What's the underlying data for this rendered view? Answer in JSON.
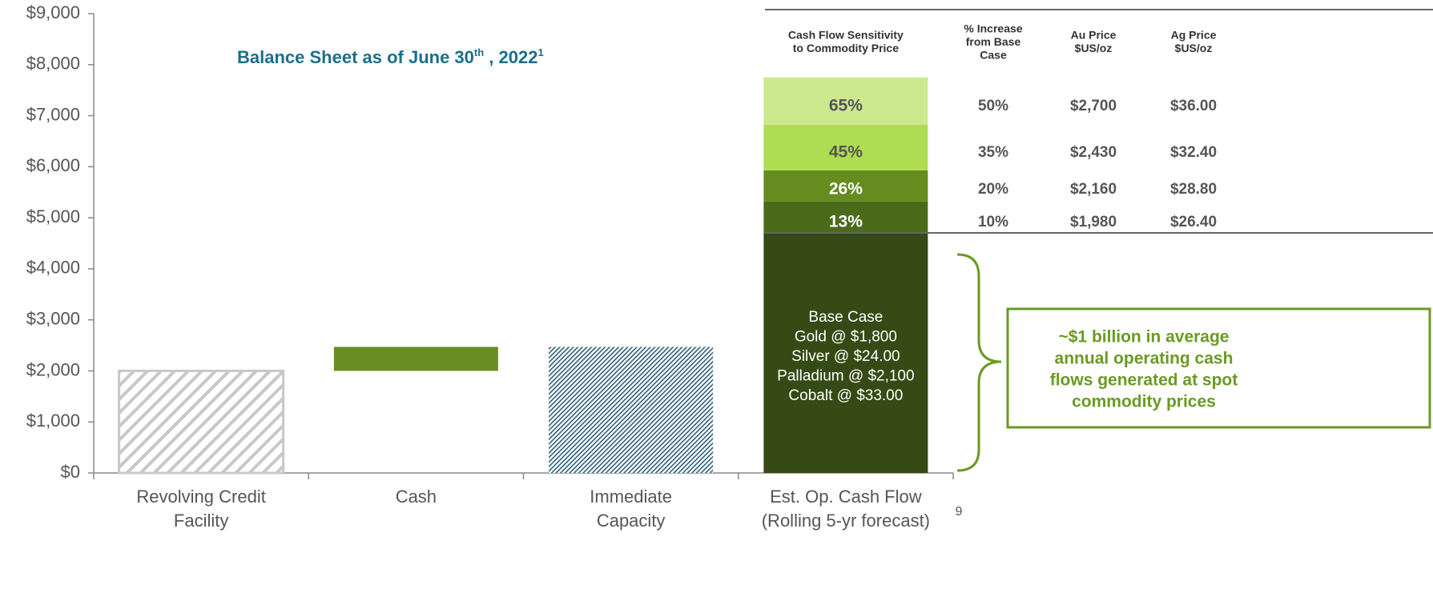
{
  "chart_data": {
    "type": "stacked-bar",
    "title_parts": [
      "Balance Sheet as of June 30",
      "th",
      " , 2022",
      "1"
    ],
    "categories": [
      [
        "Revolving Credit",
        "Facility"
      ],
      [
        "Cash"
      ],
      [
        "Immediate",
        "Capacity"
      ],
      [
        "Est. Op. Cash Flow",
        "(Rolling 5-yr forecast)"
      ]
    ],
    "stacks": [
      [
        {
          "value": 2000,
          "color": "#c8c8c8",
          "pattern": "hatch-wide"
        }
      ],
      [
        {
          "value": 470,
          "color": "#6a8e22",
          "pattern": "solid"
        }
      ],
      [
        {
          "value": 2470,
          "color": "#2e5f7a",
          "pattern": "hatch-fine"
        }
      ],
      [
        {
          "value": 4700,
          "color": "#354a14",
          "pattern": "solid"
        },
        {
          "value": 620,
          "color": "#4b6b1b",
          "pattern": "solid"
        },
        {
          "value": 610,
          "color": "#658c1e",
          "pattern": "solid"
        },
        {
          "value": 890,
          "color": "#aedd52",
          "pattern": "solid"
        },
        {
          "value": 930,
          "color": "#cce990",
          "pattern": "solid"
        }
      ]
    ],
    "floats": [
      false,
      true,
      false,
      false
    ],
    "ylim": [
      0,
      9000
    ],
    "yticks": [
      {
        "value": 0,
        "label": "$0"
      },
      {
        "value": 1000,
        "label": "$1,000"
      },
      {
        "value": 2000,
        "label": "$2,000"
      },
      {
        "value": 3000,
        "label": "$3,000"
      },
      {
        "value": 4000,
        "label": "$4,000"
      },
      {
        "value": 5000,
        "label": "$5,000"
      },
      {
        "value": 6000,
        "label": "$6,000"
      },
      {
        "value": 7000,
        "label": "$7,000"
      },
      {
        "value": 8000,
        "label": "$8,000"
      },
      {
        "value": 9000,
        "label": "$9,000"
      }
    ],
    "base_case_lines": [
      "Base Case",
      "Gold @ $1,800",
      "Silver @ $24.00",
      "Palladium @ $2,100",
      "Cobalt @ $33.00"
    ],
    "callout_lines": [
      "~$1 billion in average",
      "annual operating cash",
      "flows generated at spot",
      "commodity prices"
    ],
    "table": {
      "headers": [
        [
          "Cash Flow Sensitivity",
          "to Commodity Price"
        ],
        [
          "% Increase",
          "from Base",
          "Case"
        ],
        [
          "Au Price",
          "$US/oz"
        ],
        [
          "Ag Price",
          "$US/oz"
        ]
      ],
      "rows": [
        [
          "65%",
          "50%",
          "$2,700",
          "$36.00"
        ],
        [
          "45%",
          "35%",
          "$2,430",
          "$32.40"
        ],
        [
          "26%",
          "20%",
          "$2,160",
          "$28.80"
        ],
        [
          "13%",
          "10%",
          "$1,980",
          "$26.40"
        ]
      ]
    },
    "page_number": "9"
  }
}
